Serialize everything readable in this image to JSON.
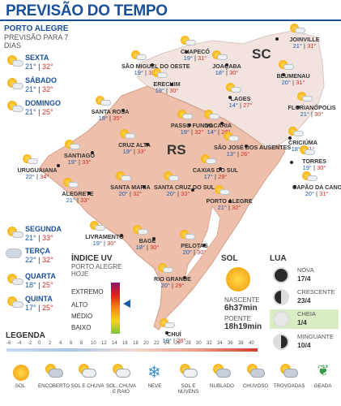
{
  "header": {
    "title": "PREVISÃO DO TEMPO"
  },
  "forecast": {
    "city": "PORTO ALEGRE",
    "subtitle": "PREVISÃO PARA 7 DIAS",
    "days": [
      {
        "day": "SEXTA",
        "min": "21°",
        "max": "32°"
      },
      {
        "day": "SÁBADO",
        "min": "21°",
        "max": "32°"
      },
      {
        "day": "DOMINGO",
        "min": "21°",
        "max": "25°"
      },
      {
        "day": "SEGUNDA",
        "min": "21°",
        "max": "33°"
      },
      {
        "day": "TERÇA",
        "min": "22°",
        "max": "32°"
      },
      {
        "day": "QUARTA",
        "min": "18°",
        "max": "25°"
      },
      {
        "day": "QUINTA",
        "min": "17°",
        "max": "25°"
      }
    ]
  },
  "map": {
    "state_labels": {
      "sc": "SC",
      "rs": "RS"
    },
    "cities": [
      {
        "name": "JOINVILLE",
        "min": "21°",
        "max": "31°"
      },
      {
        "name": "CHAPECÓ",
        "min": "19°",
        "max": "31°"
      },
      {
        "name": "SÃO MIGUEL DO OESTE",
        "min": "19°",
        "max": "32°"
      },
      {
        "name": "JOAÇABA",
        "min": "18°",
        "max": "30°"
      },
      {
        "name": "BLUMENAU",
        "min": "20°",
        "max": "31°"
      },
      {
        "name": "ERECHIM",
        "min": "19°",
        "max": "30°"
      },
      {
        "name": "LAGES",
        "min": "14°",
        "max": "27°"
      },
      {
        "name": "FLORIANÓPOLIS",
        "min": "21°",
        "max": "30°"
      },
      {
        "name": "SANTA ROSA",
        "min": "19°",
        "max": "35°"
      },
      {
        "name": "PASSO FUNDO",
        "min": "19°",
        "max": "32°"
      },
      {
        "name": "VACARIA",
        "min": "14°",
        "max": "28°"
      },
      {
        "name": "CRICIÚMA",
        "min": "18°",
        "max": "31°"
      },
      {
        "name": "SANTIAGO",
        "min": "19°",
        "max": "33°"
      },
      {
        "name": "CRUZ ALTA",
        "min": "19°",
        "max": "33°"
      },
      {
        "name": "SÃO JOSÉ DOS AUSENTES",
        "min": "13°",
        "max": "26°"
      },
      {
        "name": "TORRES",
        "min": "19°",
        "max": "30°"
      },
      {
        "name": "URUGUAIANA",
        "min": "22°",
        "max": "34°"
      },
      {
        "name": "CAXIAS DO SUL",
        "min": "17°",
        "max": "29°"
      },
      {
        "name": "CAPÃO DA CANOA",
        "min": "20°",
        "max": "31°"
      },
      {
        "name": "ALEGRETE",
        "min": "21°",
        "max": "33°"
      },
      {
        "name": "SANTA MARIA",
        "min": "20°",
        "max": "32°"
      },
      {
        "name": "SANTA CRUZ DO SUL",
        "min": "20°",
        "max": "33°"
      },
      {
        "name": "PORTO ALEGRE",
        "min": "21°",
        "max": "32°"
      },
      {
        "name": "LIVRAMENTO",
        "min": "19°",
        "max": "30°"
      },
      {
        "name": "BAGÉ",
        "min": "18°",
        "max": "30°"
      },
      {
        "name": "PELOTAS",
        "min": "20°",
        "max": "30°"
      },
      {
        "name": "RIO GRANDE",
        "min": "20°",
        "max": "29°"
      },
      {
        "name": "CHUÍ",
        "min": "19°",
        "max": "28°"
      }
    ]
  },
  "uv": {
    "title": "ÍNDICE UV",
    "subtitle": "PORTO ALEGRE HOJE",
    "levels": [
      "EXTREMO",
      "ALTO",
      "MÉDIO",
      "BAIXO"
    ]
  },
  "sun": {
    "title": "SOL",
    "sunrise_label": "NASCENTE",
    "sunrise": "6h37min",
    "sunset_label": "POENTE",
    "sunset": "18h19min"
  },
  "moon": {
    "title": "LUA",
    "phases": [
      {
        "name": "NOVA",
        "date": "17/4"
      },
      {
        "name": "CRESCENTE",
        "date": "23/4"
      },
      {
        "name": "CHEIA",
        "date": "1/4"
      },
      {
        "name": "MINGUANTE",
        "date": "10/4"
      }
    ]
  },
  "legend": {
    "title": "LEGENDA",
    "scale": [
      "-6",
      "-4",
      "-2",
      "0",
      "2",
      "4",
      "6",
      "8",
      "10",
      "12",
      "14",
      "16",
      "18",
      "20",
      "22",
      "24",
      "26",
      "28",
      "30",
      "32",
      "34",
      "36",
      "38",
      "40"
    ],
    "icons": [
      {
        "label": "SOL",
        "icon": "sun-icon"
      },
      {
        "label": "ENCOBERTO",
        "icon": "overcast-icon"
      },
      {
        "label": "SOL E CHUVA",
        "icon": "sun-rain-icon"
      },
      {
        "label": "SOL, CHUVA E RAIO",
        "icon": "sun-rain-lightning-icon"
      },
      {
        "label": "NEVE",
        "icon": "snow-icon"
      },
      {
        "label": "SOL E NUVENS",
        "icon": "sun-clouds-icon"
      },
      {
        "label": "NUBLADO",
        "icon": "cloudy-icon"
      },
      {
        "label": "CHUVOSO",
        "icon": "rainy-icon"
      },
      {
        "label": "TROVOADAS",
        "icon": "thunderstorm-icon"
      },
      {
        "label": "GEADA",
        "icon": "frost-icon"
      }
    ]
  }
}
